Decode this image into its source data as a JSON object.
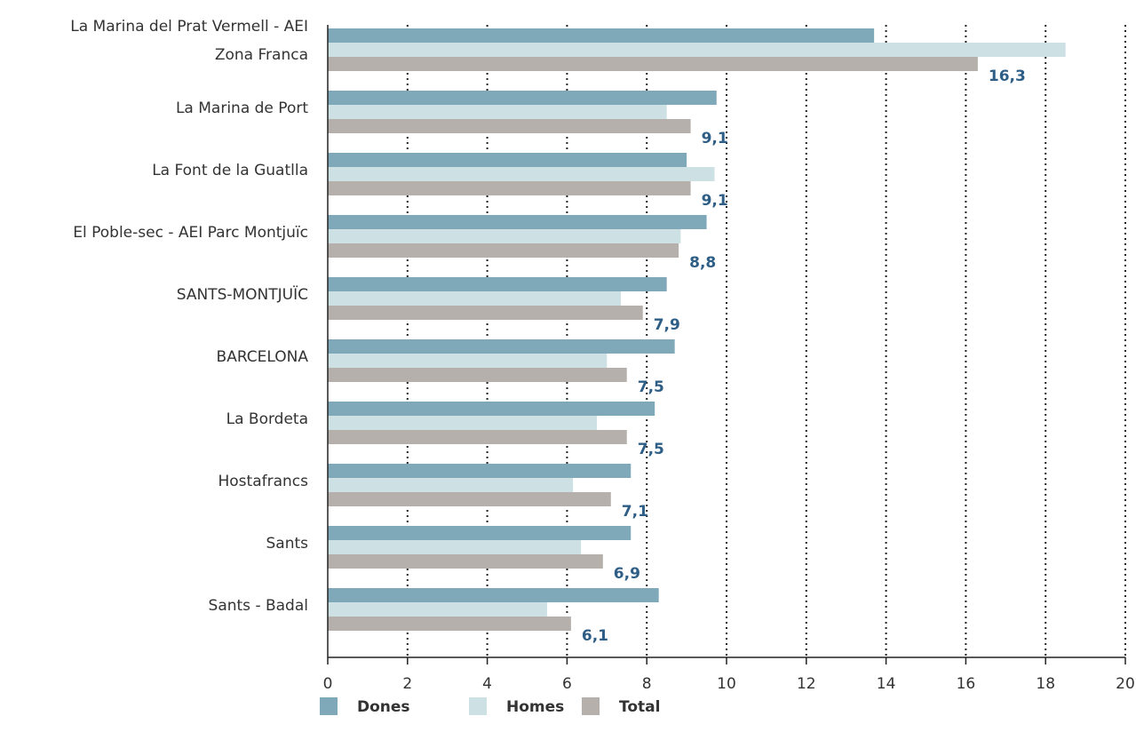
{
  "chart_data": {
    "type": "bar",
    "orientation": "horizontal",
    "categories": [
      "La Marina del Prat Vermell - AEI Zona Franca",
      "La Marina de Port",
      "La Font de la Guatlla",
      "El Poble-sec - AEI Parc Montjuïc",
      "SANTS-MONTJUÏC",
      "BARCELONA",
      "La Bordeta",
      "Hostafrancs",
      "Sants",
      "Sants - Badal"
    ],
    "series": [
      {
        "name": "Dones",
        "color": "#7fa8b8",
        "values": [
          13.7,
          9.75,
          9.0,
          9.5,
          8.5,
          8.7,
          8.2,
          7.6,
          7.6,
          8.3
        ]
      },
      {
        "name": "Homes",
        "color": "#cde0e3",
        "values": [
          18.5,
          8.5,
          9.7,
          8.85,
          7.35,
          7.0,
          6.75,
          6.15,
          6.35,
          5.5
        ]
      },
      {
        "name": "Total",
        "color": "#b5b0ab",
        "values": [
          16.3,
          9.1,
          9.1,
          8.8,
          7.9,
          7.5,
          7.5,
          7.1,
          6.9,
          6.1
        ],
        "value_labels": [
          "16,3",
          "9,1",
          "9,1",
          "8,8",
          "7,9",
          "7,5",
          "7,5",
          "7,1",
          "6,9",
          "6,1"
        ]
      }
    ],
    "xlim": [
      0,
      20
    ],
    "xticks": [
      0,
      2,
      4,
      6,
      8,
      10,
      12,
      14,
      16,
      18,
      20
    ],
    "grid": true,
    "legend": "bottom"
  }
}
